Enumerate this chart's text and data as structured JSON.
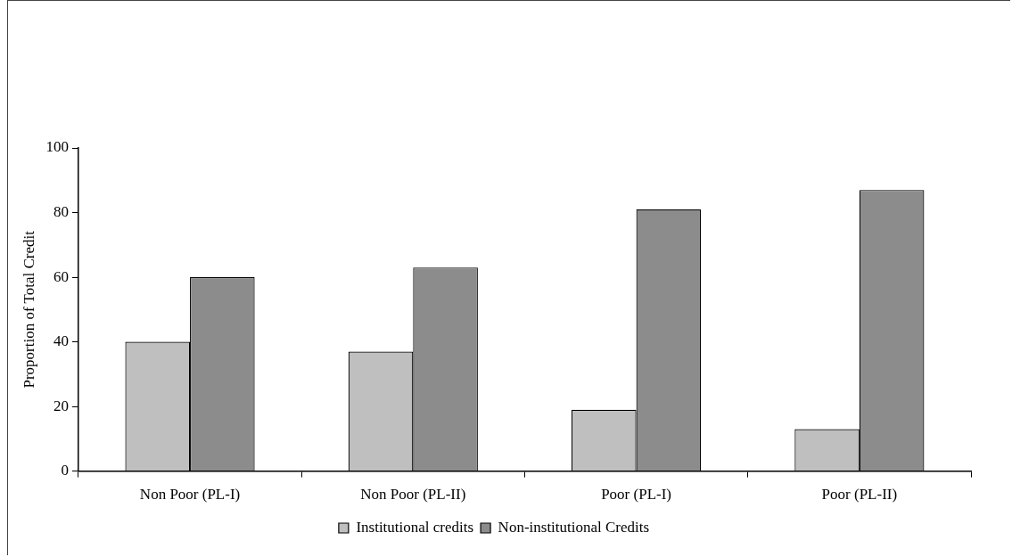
{
  "chart_data": {
    "type": "bar",
    "ylabel": "Proportion of Total Credit",
    "categories": [
      "Non Poor (PL-I)",
      "Non Poor (PL-II)",
      "Poor (PL-I)",
      "Poor (PL-II)"
    ],
    "series": [
      {
        "name": "Institutional credits",
        "color": "#bfbfbf",
        "values": [
          40,
          37,
          19,
          13
        ]
      },
      {
        "name": "Non-institutional Credits",
        "color": "#8c8c8c",
        "values": [
          60,
          63,
          81,
          87
        ]
      }
    ],
    "ylim": [
      0,
      100
    ],
    "yticks": [
      0,
      20,
      40,
      60,
      80,
      100
    ],
    "grid": false,
    "legend": "bottom"
  }
}
